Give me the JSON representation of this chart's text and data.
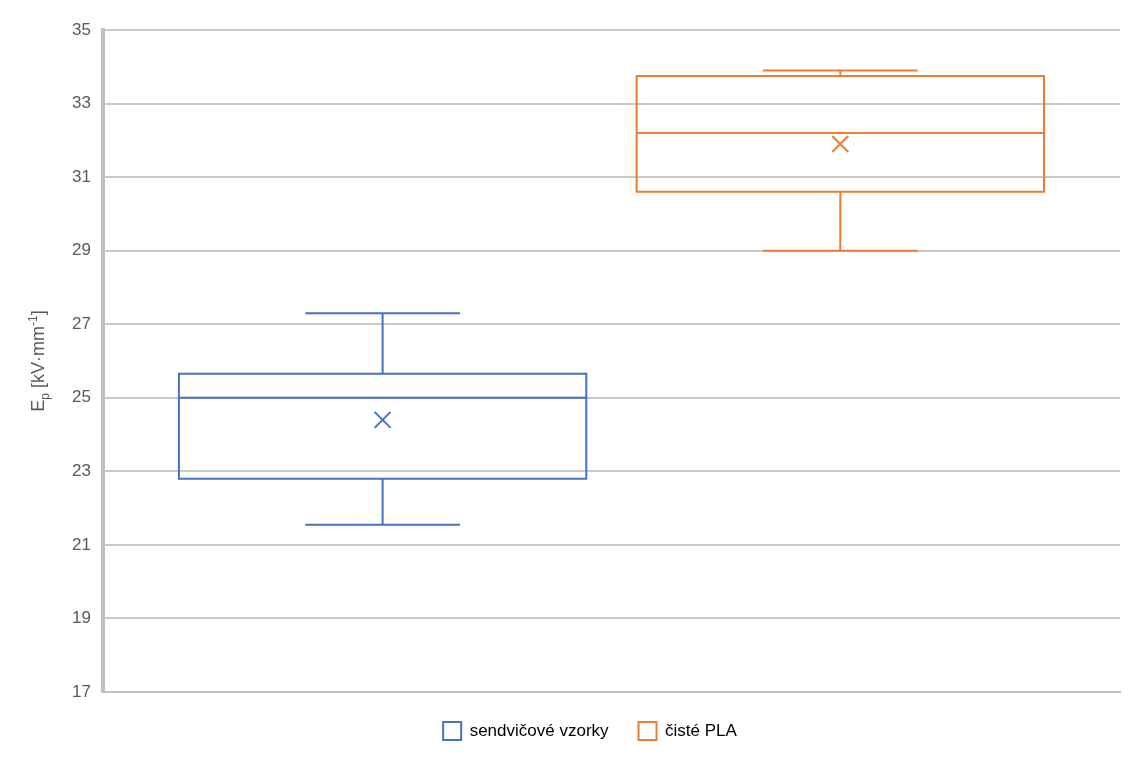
{
  "chart_data": {
    "type": "box",
    "ylabel": "E$_{p}$ [kV·mm$^{-1}$]",
    "categories": [
      null
    ],
    "series": [
      {
        "name": "sendvičové vzorky",
        "color": "#4472c4",
        "boxes": [
          {
            "low": 21.55,
            "q1": 22.8,
            "median": 25.0,
            "q3": 25.65,
            "high": 27.3,
            "mean": 24.4
          }
        ]
      },
      {
        "name": "čisté PLA",
        "color": "#ed7d31",
        "boxes": [
          {
            "low": 29.0,
            "q1": 30.6,
            "median": 32.2,
            "q3": 33.75,
            "high": 33.9,
            "mean": 31.9
          }
        ]
      }
    ],
    "ylim": [
      17,
      35
    ],
    "yticks": [
      17,
      19,
      21,
      23,
      25,
      27,
      29,
      31,
      33,
      35
    ],
    "grid": "y",
    "legend": "bottom",
    "marker": "cross"
  }
}
